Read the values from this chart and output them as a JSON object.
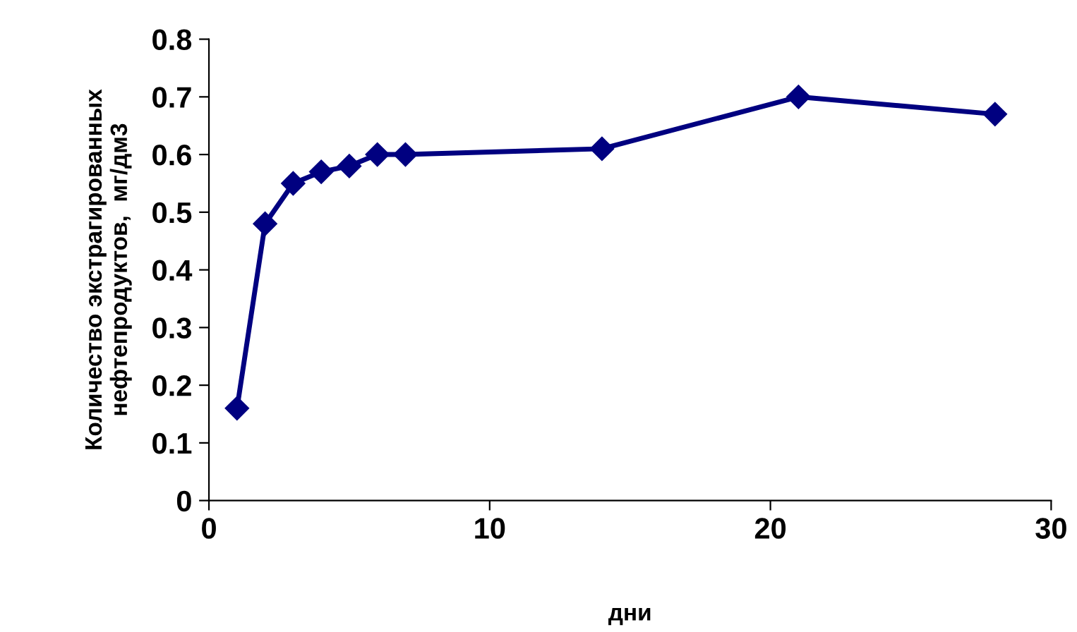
{
  "chart_data": {
    "type": "line",
    "xlabel": "дни",
    "ylabel": "Количество экстрагированных\nнефтепродуктов,  мг/дм3",
    "x": [
      1,
      2,
      3,
      4,
      5,
      6,
      7,
      14,
      21,
      28
    ],
    "series": [
      {
        "color": "#000080",
        "values": [
          0.16,
          0.48,
          0.55,
          0.57,
          0.58,
          0.6,
          0.6,
          0.61,
          0.7,
          0.67
        ]
      }
    ],
    "xlim": [
      0,
      30
    ],
    "xticks": [
      0,
      10,
      20,
      30
    ],
    "ylim": [
      0,
      0.8
    ],
    "yticks": [
      0,
      0.1,
      0.2,
      0.3,
      0.4,
      0.5,
      0.6,
      0.7,
      0.8
    ],
    "grid": false,
    "legend": false,
    "marker": "diamond",
    "line_style": "solid"
  }
}
